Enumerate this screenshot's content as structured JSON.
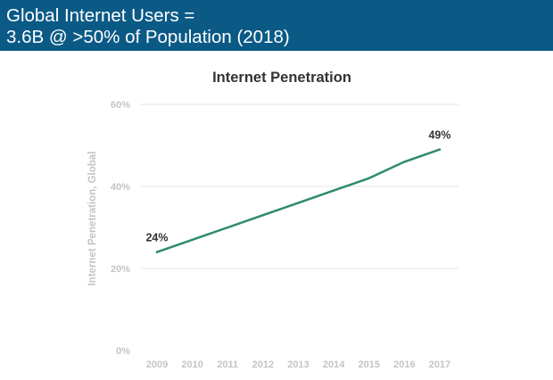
{
  "header": {
    "line1": "Global Internet Users =",
    "line2": "3.6B @ >50% of Population (2018)"
  },
  "colors": {
    "header_bg": "#0b5a86",
    "line": "#2e8b6e",
    "grid": "#e3e3e3",
    "tick_text": "#c4c4c4",
    "annotation_text": "#333333"
  },
  "chart_data": {
    "type": "line",
    "title": "Internet Penetration",
    "xlabel": "",
    "ylabel": "Internet Penetration, Global",
    "x": [
      2009,
      2010,
      2011,
      2012,
      2013,
      2014,
      2015,
      2016,
      2017
    ],
    "xtick_labels": [
      "2009",
      "2010",
      "2011",
      "2012",
      "2013",
      "2014",
      "2015",
      "2016",
      "2017"
    ],
    "series": [
      {
        "values": [
          24,
          27,
          30,
          33,
          36,
          39,
          42,
          46,
          49
        ]
      }
    ],
    "ylim": [
      0,
      60
    ],
    "yticks": [
      0,
      20,
      40,
      60
    ],
    "ytick_labels": [
      "0%",
      "20%",
      "40%",
      "60%"
    ],
    "annotations": [
      {
        "x": 2009,
        "y": 24,
        "text": "24%"
      },
      {
        "x": 2017,
        "y": 49,
        "text": "49%"
      }
    ],
    "grid": true,
    "legend": "none"
  }
}
